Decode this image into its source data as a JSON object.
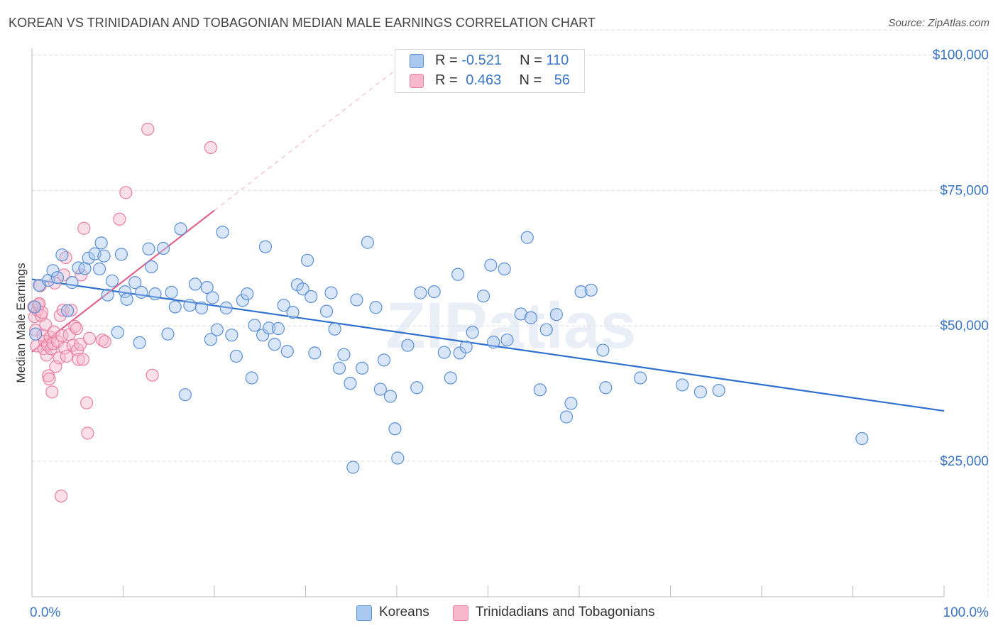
{
  "title": "KOREAN VS TRINIDADIAN AND TOBAGONIAN MEDIAN MALE EARNINGS CORRELATION CHART",
  "source": "Source: ZipAtlas.com",
  "watermark": "ZIPatlas",
  "colors": {
    "korean_fill": "#a9c8f0",
    "korean_stroke": "#5b8fd6",
    "korean_line": "#2f6fce",
    "trini_fill": "#f7b8cb",
    "trini_stroke": "#e87fa1",
    "trini_line": "#e0628d",
    "axis_label": "#3a75c4",
    "grid": "#d9d9d9"
  },
  "legend": {
    "rows": [
      {
        "r_label": "R = ",
        "r_value": "-0.521",
        "n_label": "N = ",
        "n_value": "110"
      },
      {
        "r_label": "R = ",
        "r_value": "0.463",
        "n_label": "N = ",
        "n_value": "56"
      }
    ]
  },
  "bottom_legend": [
    "Koreans",
    "Trinidadians and Tobagonians"
  ],
  "chart_data": {
    "type": "scatter",
    "title": "KOREAN VS TRINIDADIAN AND TOBAGONIAN MEDIAN MALE EARNINGS CORRELATION CHART",
    "xlabel": "",
    "ylabel": "Median Male Earnings",
    "xlim": [
      0,
      100
    ],
    "ylim": [
      0,
      105000
    ],
    "x_tick_labels": [
      "0.0%",
      "100.0%"
    ],
    "y_ticks": [
      25000,
      50000,
      75000,
      100000
    ],
    "y_tick_labels": [
      "$25,000",
      "$50,000",
      "$75,000",
      "$100,000"
    ],
    "grid": true,
    "legend_position": "top-center",
    "series": [
      {
        "name": "Koreans",
        "r": -0.521,
        "n": 110,
        "trend": {
          "x0": 0,
          "y0": 58600,
          "x1": 100,
          "y1": 34300
        },
        "points": [
          [
            0.3,
            53500
          ],
          [
            0.4,
            48500
          ],
          [
            0.8,
            57500
          ],
          [
            1.8,
            58400
          ],
          [
            2.3,
            60200
          ],
          [
            2.8,
            58900
          ],
          [
            3.3,
            63100
          ],
          [
            3.9,
            52800
          ],
          [
            4.4,
            58000
          ],
          [
            5.1,
            60700
          ],
          [
            5.8,
            60600
          ],
          [
            6.2,
            62500
          ],
          [
            6.9,
            63300
          ],
          [
            7.4,
            60500
          ],
          [
            7.6,
            65300
          ],
          [
            7.9,
            62900
          ],
          [
            8.3,
            55700
          ],
          [
            8.8,
            58300
          ],
          [
            9.4,
            48800
          ],
          [
            9.8,
            63200
          ],
          [
            10.2,
            56300
          ],
          [
            10.4,
            54900
          ],
          [
            11.3,
            58000
          ],
          [
            11.8,
            46900
          ],
          [
            12.0,
            56200
          ],
          [
            12.8,
            64200
          ],
          [
            13.1,
            60900
          ],
          [
            13.5,
            55900
          ],
          [
            14.4,
            64300
          ],
          [
            14.9,
            48500
          ],
          [
            15.3,
            56200
          ],
          [
            15.7,
            53500
          ],
          [
            16.3,
            67900
          ],
          [
            16.8,
            37300
          ],
          [
            17.3,
            53800
          ],
          [
            17.9,
            57700
          ],
          [
            18.6,
            53300
          ],
          [
            19.2,
            57100
          ],
          [
            19.6,
            47500
          ],
          [
            19.8,
            55200
          ],
          [
            20.3,
            49300
          ],
          [
            20.9,
            67300
          ],
          [
            21.3,
            53300
          ],
          [
            21.9,
            48300
          ],
          [
            22.4,
            44400
          ],
          [
            23.1,
            54700
          ],
          [
            23.6,
            55900
          ],
          [
            24.1,
            40400
          ],
          [
            24.4,
            50100
          ],
          [
            25.3,
            48300
          ],
          [
            25.6,
            64600
          ],
          [
            26.0,
            49600
          ],
          [
            26.6,
            46600
          ],
          [
            27.0,
            49500
          ],
          [
            27.6,
            53800
          ],
          [
            28.0,
            45300
          ],
          [
            28.6,
            52500
          ],
          [
            29.1,
            57600
          ],
          [
            29.7,
            56800
          ],
          [
            30.2,
            62100
          ],
          [
            30.6,
            55400
          ],
          [
            31.0,
            45000
          ],
          [
            32.3,
            52700
          ],
          [
            32.8,
            56100
          ],
          [
            33.2,
            49400
          ],
          [
            33.7,
            42200
          ],
          [
            34.2,
            44700
          ],
          [
            34.9,
            39400
          ],
          [
            35.6,
            54800
          ],
          [
            36.2,
            42200
          ],
          [
            36.8,
            65400
          ],
          [
            37.7,
            53400
          ],
          [
            38.2,
            38300
          ],
          [
            38.6,
            43700
          ],
          [
            39.3,
            37000
          ],
          [
            39.8,
            31000
          ],
          [
            40.1,
            25600
          ],
          [
            41.2,
            46400
          ],
          [
            42.2,
            38600
          ],
          [
            42.6,
            56100
          ],
          [
            44.1,
            56300
          ],
          [
            45.2,
            45100
          ],
          [
            45.9,
            40400
          ],
          [
            46.7,
            59500
          ],
          [
            46.9,
            45000
          ],
          [
            47.6,
            46100
          ],
          [
            48.3,
            48800
          ],
          [
            49.5,
            55500
          ],
          [
            50.3,
            61200
          ],
          [
            50.6,
            47000
          ],
          [
            51.8,
            60500
          ],
          [
            52.1,
            47400
          ],
          [
            53.6,
            52200
          ],
          [
            54.3,
            66300
          ],
          [
            54.7,
            51500
          ],
          [
            55.7,
            38200
          ],
          [
            56.4,
            49300
          ],
          [
            57.5,
            52100
          ],
          [
            58.6,
            33200
          ],
          [
            59.1,
            35700
          ],
          [
            60.2,
            56300
          ],
          [
            61.3,
            56600
          ],
          [
            62.6,
            45500
          ],
          [
            62.9,
            38600
          ],
          [
            66.7,
            40400
          ],
          [
            71.3,
            39100
          ],
          [
            73.3,
            37800
          ],
          [
            75.3,
            38100
          ],
          [
            91.0,
            29200
          ],
          [
            35.2,
            23900
          ]
        ]
      },
      {
        "name": "Trinidadians and Tobagonians",
        "r": 0.463,
        "n": 56,
        "trend": {
          "x0": 0,
          "y0": 45200,
          "x1": 20,
          "y1": 71300
        },
        "trend_dashed": {
          "x0": 20,
          "y0": 71300,
          "x1": 40,
          "y1": 97400
        },
        "points": [
          [
            0.2,
            53500
          ],
          [
            0.3,
            51700
          ],
          [
            0.4,
            49200
          ],
          [
            0.5,
            46300
          ],
          [
            0.6,
            52900
          ],
          [
            0.7,
            53900
          ],
          [
            0.8,
            54100
          ],
          [
            0.9,
            57400
          ],
          [
            1.0,
            51900
          ],
          [
            1.1,
            52500
          ],
          [
            1.2,
            48300
          ],
          [
            1.3,
            45800
          ],
          [
            1.4,
            47200
          ],
          [
            1.5,
            50200
          ],
          [
            1.6,
            44600
          ],
          [
            1.7,
            46500
          ],
          [
            1.8,
            40800
          ],
          [
            1.9,
            40200
          ],
          [
            2.0,
            47900
          ],
          [
            2.1,
            45800
          ],
          [
            2.2,
            37800
          ],
          [
            2.3,
            46700
          ],
          [
            2.4,
            48900
          ],
          [
            2.6,
            42500
          ],
          [
            2.8,
            47100
          ],
          [
            3.0,
            44100
          ],
          [
            3.1,
            51900
          ],
          [
            3.3,
            48200
          ],
          [
            3.4,
            52900
          ],
          [
            3.5,
            59400
          ],
          [
            3.6,
            45900
          ],
          [
            3.7,
            62600
          ],
          [
            3.8,
            44400
          ],
          [
            4.1,
            48400
          ],
          [
            4.3,
            52900
          ],
          [
            4.5,
            46400
          ],
          [
            4.7,
            49900
          ],
          [
            4.9,
            49500
          ],
          [
            5.0,
            45600
          ],
          [
            5.1,
            43800
          ],
          [
            5.3,
            46600
          ],
          [
            5.4,
            59400
          ],
          [
            5.6,
            43800
          ],
          [
            5.7,
            68000
          ],
          [
            6.0,
            35800
          ],
          [
            6.1,
            30200
          ],
          [
            6.3,
            47700
          ],
          [
            7.7,
            47400
          ],
          [
            8.0,
            47100
          ],
          [
            9.6,
            69700
          ],
          [
            10.3,
            74600
          ],
          [
            12.7,
            86300
          ],
          [
            13.2,
            40900
          ],
          [
            19.6,
            82900
          ],
          [
            2.5,
            57900
          ],
          [
            3.2,
            18600
          ]
        ]
      }
    ]
  }
}
